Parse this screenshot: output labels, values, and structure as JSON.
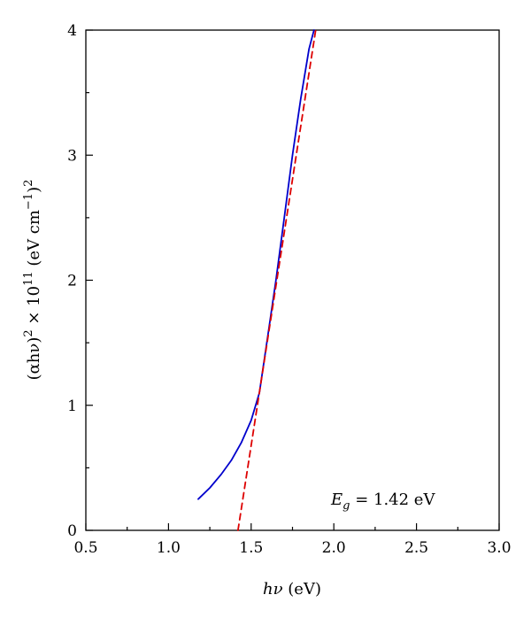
{
  "chart_data": {
    "type": "line",
    "xlabel": {
      "italic": "hν",
      "rest": " (eV)"
    },
    "ylabel": {
      "parts": [
        {
          "t": "(αhν)",
          "sup": false
        },
        {
          "t": "2",
          "sup": true
        },
        {
          "t": " × 10",
          "sup": false
        },
        {
          "t": "11",
          "sup": true
        },
        {
          "t": " (eV cm",
          "sup": false
        },
        {
          "t": "−1",
          "sup": true
        },
        {
          "t": ")",
          "sup": false
        },
        {
          "t": "2",
          "sup": true
        }
      ]
    },
    "xlim": [
      0.5,
      3.0
    ],
    "ylim": [
      0,
      4
    ],
    "xticks": [
      "0.5",
      "1.0",
      "1.5",
      "2.0",
      "2.5",
      "3.0"
    ],
    "yticks": [
      "0",
      "1",
      "2",
      "3",
      "4"
    ],
    "series": [
      {
        "style": "solid",
        "color": "#0000cc",
        "points": [
          [
            1.18,
            0.25
          ],
          [
            1.25,
            0.34
          ],
          [
            1.32,
            0.45
          ],
          [
            1.38,
            0.56
          ],
          [
            1.44,
            0.7
          ],
          [
            1.5,
            0.88
          ],
          [
            1.55,
            1.1
          ],
          [
            1.6,
            1.55
          ],
          [
            1.65,
            2.0
          ],
          [
            1.7,
            2.5
          ],
          [
            1.75,
            3.0
          ],
          [
            1.8,
            3.45
          ],
          [
            1.85,
            3.85
          ],
          [
            1.88,
            4.0
          ]
        ]
      },
      {
        "style": "dashed",
        "color": "#dd0000",
        "points": [
          [
            1.42,
            0.0
          ],
          [
            1.89,
            4.0
          ]
        ]
      }
    ],
    "annotation": {
      "main": "E",
      "sub": "g",
      "rest": " = 1.42 eV"
    }
  }
}
